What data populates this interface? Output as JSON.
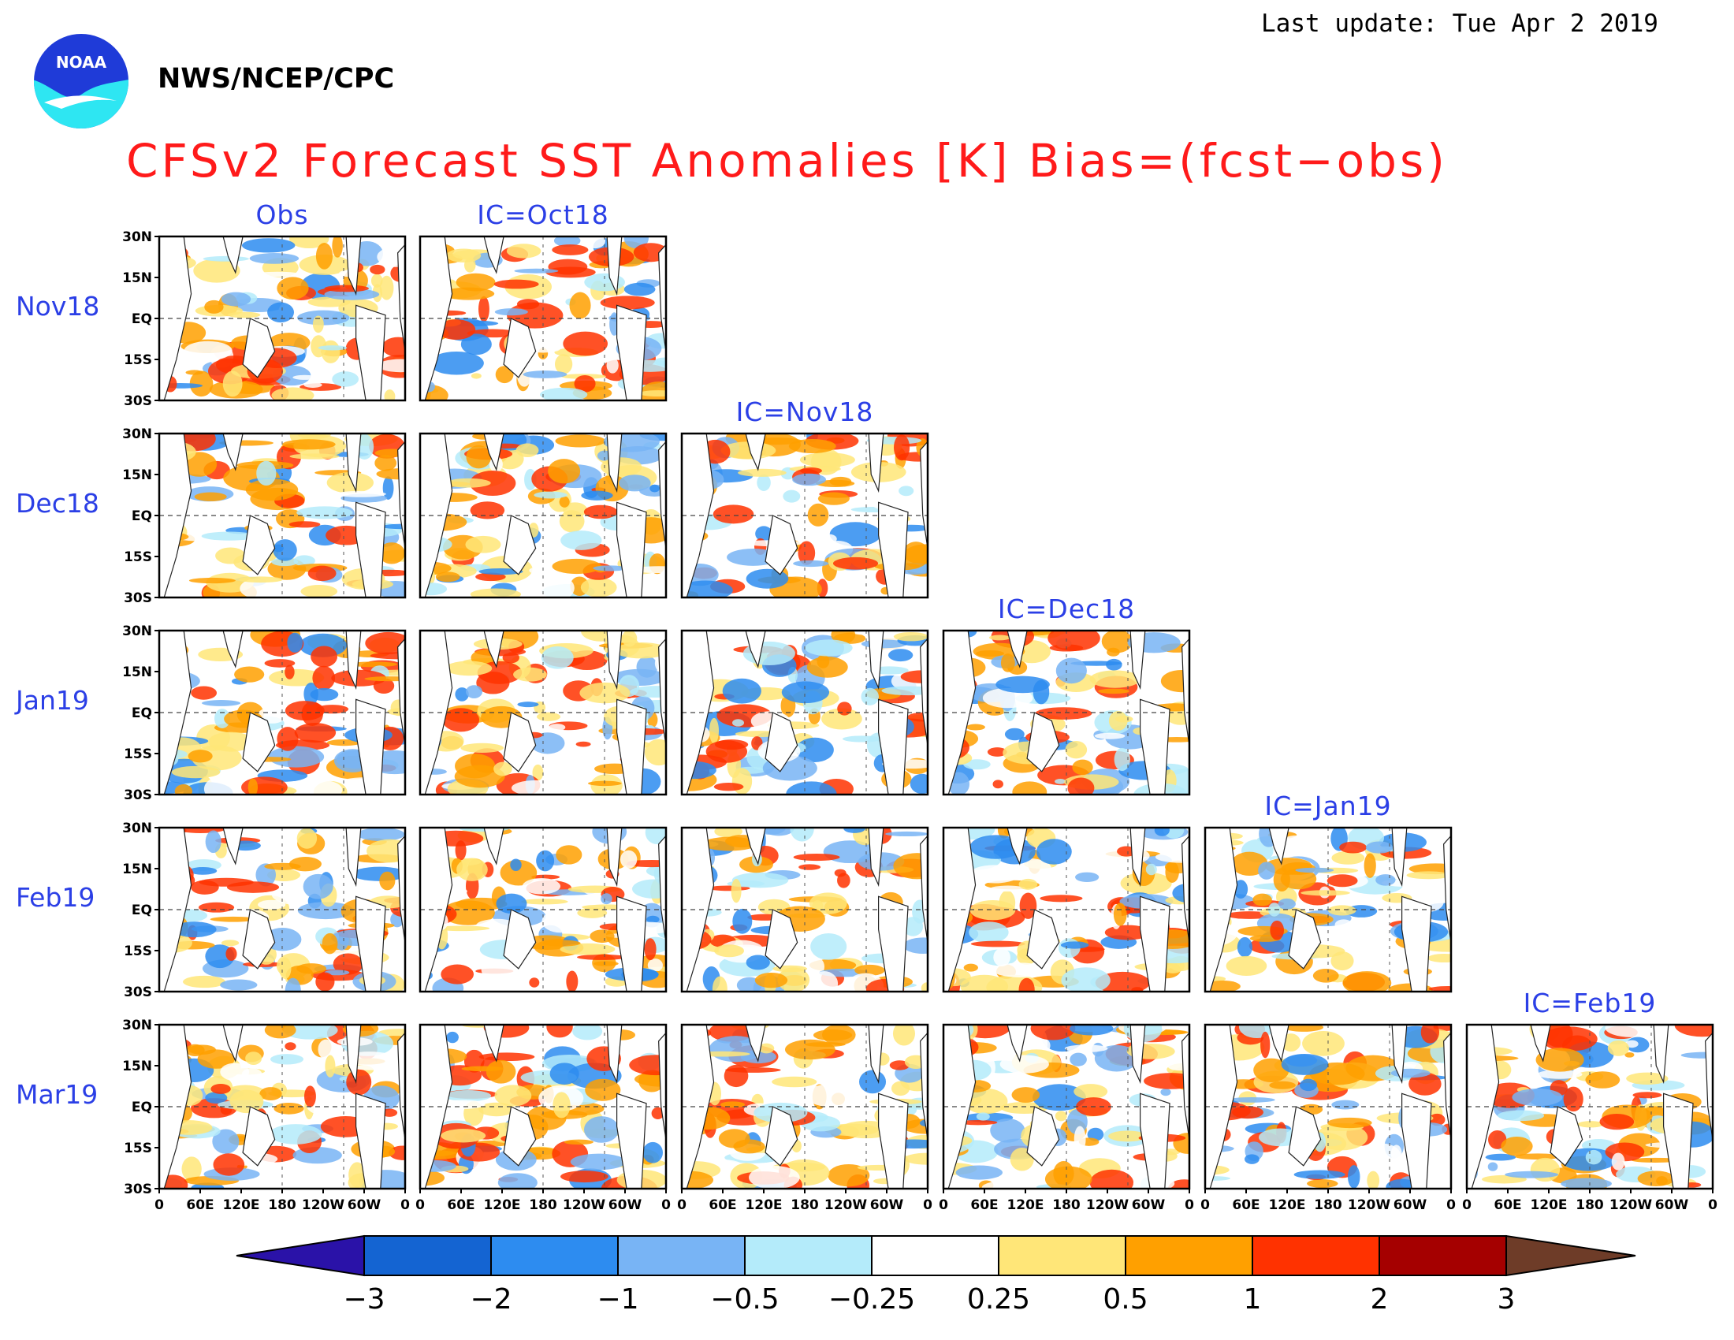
{
  "header": {
    "last_update": "Last update: Tue Apr 2 2019",
    "agency": "NWS/NCEP/CPC",
    "logo_text": "NOAA",
    "title": "CFSv2 Forecast SST Anomalies [K] Bias=(fcst−obs)"
  },
  "grid": {
    "column_labels": [
      "Obs",
      "IC=Oct18",
      "IC=Nov18",
      "IC=Dec18",
      "IC=Jan19",
      "IC=Feb19"
    ],
    "row_labels": [
      "Nov18",
      "Dec18",
      "Jan19",
      "Feb19",
      "Mar19"
    ],
    "lat_ticks": [
      "30N",
      "15N",
      "EQ",
      "15S",
      "30S"
    ],
    "lon_ticks": [
      "0",
      "60E",
      "120E",
      "180",
      "120W",
      "60W",
      "0"
    ]
  },
  "colorbar": {
    "labels": [
      "−3",
      "−2",
      "−1",
      "−0.5",
      "−0.25",
      "0.25",
      "0.5",
      "1",
      "2",
      "3"
    ],
    "colors": {
      "below_min": "#2a12a8",
      "bins": [
        "#1464d2",
        "#2d8cf0",
        "#78b4f5",
        "#b4ebfa",
        "#ffffff",
        "#ffe678",
        "#ffa000",
        "#ff3200",
        "#a50000"
      ],
      "above_max": "#6e3c28"
    }
  }
}
